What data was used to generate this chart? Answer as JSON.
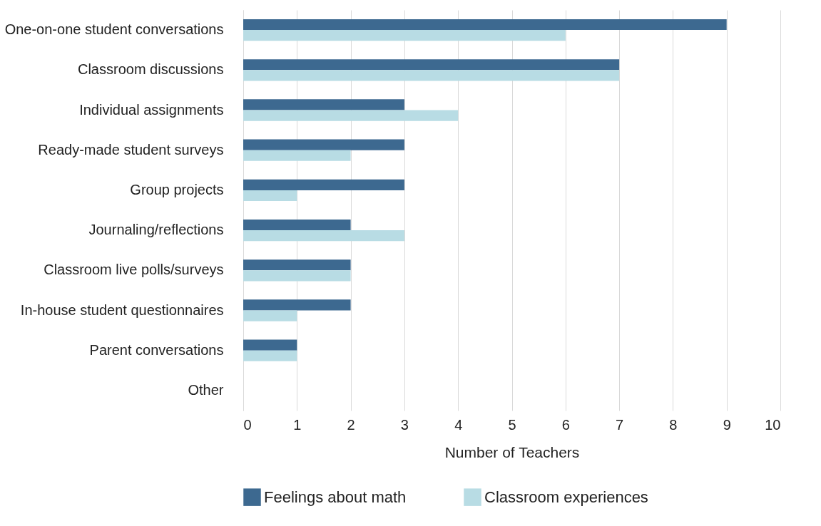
{
  "chart_data": {
    "type": "bar",
    "orientation": "horizontal",
    "xlabel": "Number of Teachers",
    "categories": [
      "One-on-one student conversations",
      "Classroom discussions",
      "Individual assignments",
      "Ready-made student surveys",
      "Group projects",
      "Journaling/reflections",
      "Classroom live polls/surveys",
      "In-house student questionnaires",
      "Parent conversations",
      "Other"
    ],
    "series": [
      {
        "name": "Feelings about math",
        "color": "#3d6990",
        "values": [
          9,
          7,
          3,
          3,
          3,
          2,
          2,
          2,
          1,
          0
        ]
      },
      {
        "name": "Classroom experiences",
        "color": "#b8dce4",
        "values": [
          6,
          7,
          4,
          2,
          1,
          3,
          2,
          1,
          1,
          0
        ]
      }
    ],
    "xlim": [
      0,
      10
    ],
    "xticks": [
      0,
      1,
      2,
      3,
      4,
      5,
      6,
      7,
      8,
      9,
      10
    ],
    "grid": "x",
    "legend": "bottom"
  }
}
